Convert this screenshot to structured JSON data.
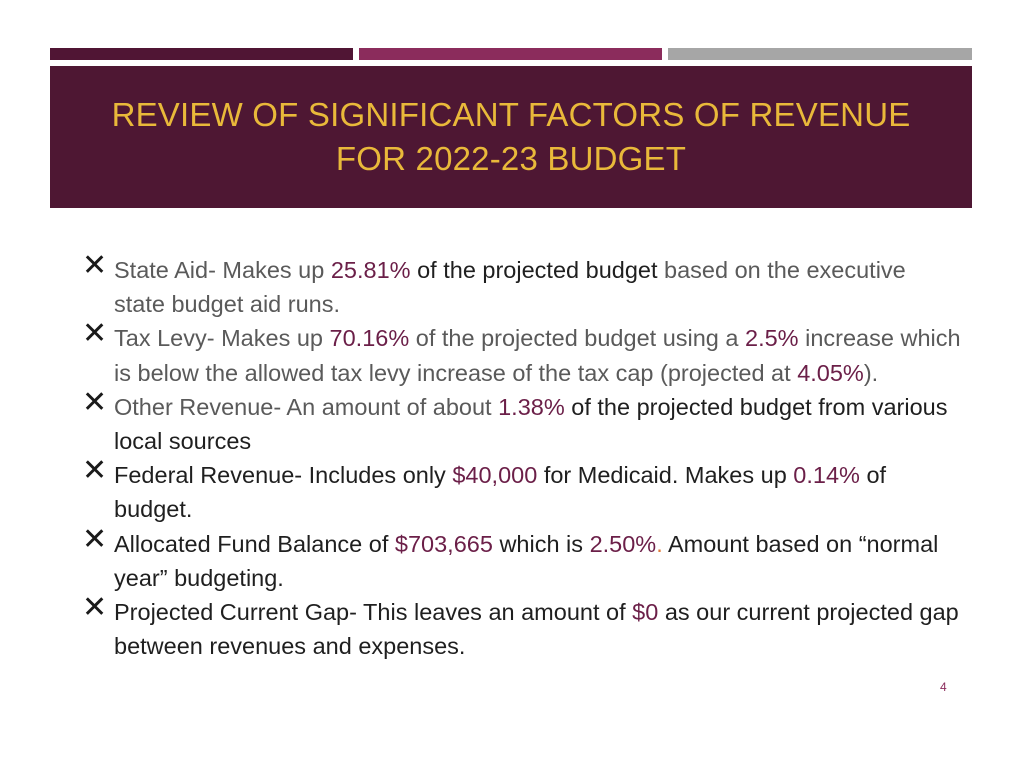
{
  "slide": {
    "title_line1": "REVIEW OF SIGNIFICANT FACTORS OF REVENUE",
    "title_line2": "FOR 2022-23 BUDGET",
    "page_number": "4"
  },
  "bullets": [
    {
      "label": "State Aid-",
      "t1": " Makes up ",
      "pct": "25.81%",
      "t2": " of the projected budget",
      "t3": " based on the executive state budget aid runs."
    },
    {
      "label": "Tax Levy-",
      "t1": " Makes up ",
      "pct": "70.16%",
      "t2": " of the projected budget using a ",
      "pct2": "2.5%",
      "t3": " increase which is below the allowed tax levy increase of the tax cap (projected at ",
      "pct3": "4.05%",
      "t4": ")."
    },
    {
      "label": "Other Revenue-",
      "t1": " An amount of about ",
      "pct": "1.38%",
      "t2": " of the projected budget from various local sources"
    },
    {
      "label": "Federal Revenue-",
      "t1": " Includes only ",
      "amt": "$40,000",
      "t2": " for Medicaid. Makes up ",
      "pct": "0.14%",
      "t3": " of budget."
    },
    {
      "label": "Allocated Fund Balance of ",
      "amt": "$703,665",
      "t1": " which is ",
      "pct": "2.50%",
      "dot": ".",
      "t2": " Amount based on “normal year” budgeting."
    },
    {
      "label": "Projected Current Gap-",
      "t1": " This leaves an amount of ",
      "amt": "$0",
      "t2": " as our current projected gap between revenues and expenses."
    }
  ],
  "colors": {
    "banner": "#4e1733",
    "title": "#e9b93a",
    "highlight": "#6b1f48",
    "stripe1": "#501534",
    "stripe2": "#8b2c5c",
    "stripe3": "#a6a6a6"
  },
  "icons": {
    "bullet": "x-mark-icon"
  }
}
